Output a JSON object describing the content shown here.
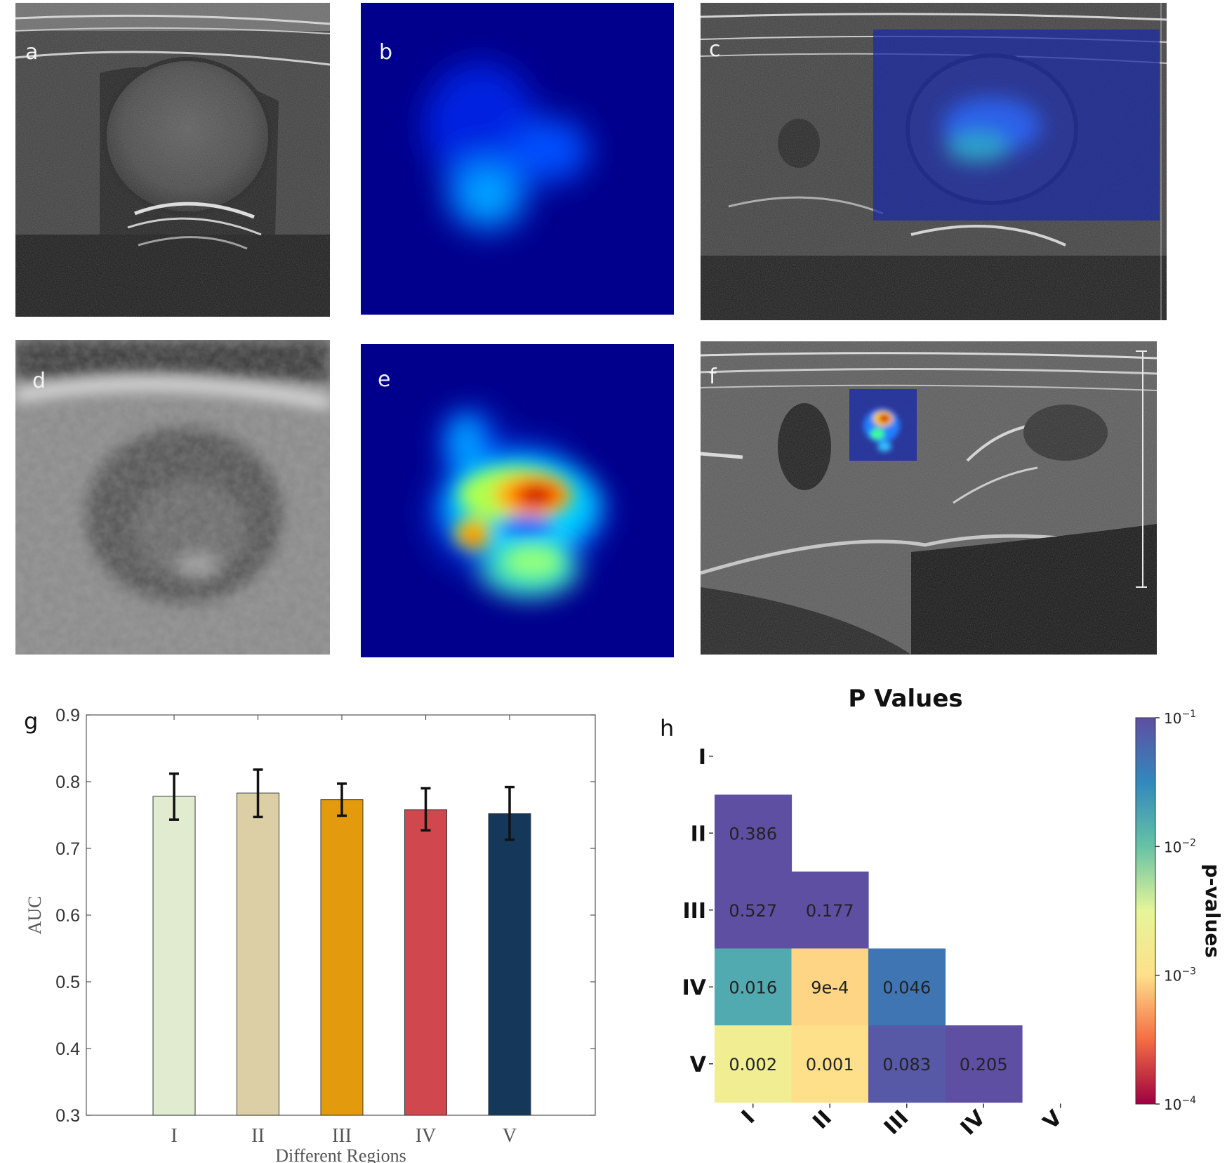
{
  "panels": {
    "a": {
      "label": "a"
    },
    "b": {
      "label": "b"
    },
    "c": {
      "label": "c"
    },
    "d": {
      "label": "d"
    },
    "e": {
      "label": "e"
    },
    "f": {
      "label": "f"
    }
  },
  "colors": {
    "bars": [
      "#e1ebd0",
      "#dccfa6",
      "#e39a0d",
      "#d0484d",
      "#14375a"
    ],
    "heatmap_background": "#00008c",
    "colormap": [
      "#9e0142",
      "#f46d43",
      "#fee08b",
      "#e6f598",
      "#66c2a5",
      "#3288bd",
      "#5e4fa2"
    ]
  },
  "chart_data": [
    {
      "panel_label": "g",
      "type": "bar",
      "categories": [
        "I",
        "II",
        "III",
        "IV",
        "V"
      ],
      "values": [
        0.778,
        0.783,
        0.773,
        0.758,
        0.752
      ],
      "error_bars": [
        {
          "low": 0.743,
          "high": 0.812
        },
        {
          "low": 0.747,
          "high": 0.818
        },
        {
          "low": 0.749,
          "high": 0.797
        },
        {
          "low": 0.727,
          "high": 0.79
        },
        {
          "low": 0.713,
          "high": 0.792
        }
      ],
      "xlabel": "Different Regions",
      "ylabel": "AUC",
      "ylim": [
        0.3,
        0.9
      ],
      "yticks": [
        "0.3",
        "0.4",
        "0.5",
        "0.6",
        "0.7",
        "0.8",
        "0.9"
      ],
      "grid": false
    },
    {
      "panel_label": "h",
      "type": "heatmap",
      "title": "P Values",
      "rows": [
        "I",
        "II",
        "III",
        "IV",
        "V"
      ],
      "columns": [
        "I",
        "II",
        "III",
        "IV",
        "V"
      ],
      "cells": [
        {
          "row": "II",
          "col": "I",
          "value": 0.386,
          "label": "0.386"
        },
        {
          "row": "III",
          "col": "I",
          "value": 0.527,
          "label": "0.527"
        },
        {
          "row": "III",
          "col": "II",
          "value": 0.177,
          "label": "0.177"
        },
        {
          "row": "IV",
          "col": "I",
          "value": 0.016,
          "label": "0.016"
        },
        {
          "row": "IV",
          "col": "II",
          "value": 0.0009,
          "label": "9e-4"
        },
        {
          "row": "IV",
          "col": "III",
          "value": 0.046,
          "label": "0.046"
        },
        {
          "row": "V",
          "col": "I",
          "value": 0.002,
          "label": "0.002"
        },
        {
          "row": "V",
          "col": "II",
          "value": 0.001,
          "label": "0.001"
        },
        {
          "row": "V",
          "col": "III",
          "value": 0.083,
          "label": "0.083"
        },
        {
          "row": "V",
          "col": "IV",
          "value": 0.205,
          "label": "0.205"
        }
      ],
      "colorbar": {
        "label": "p-values",
        "scale": "log",
        "range": [
          0.0001,
          0.1
        ],
        "tick_values": [
          0.1,
          0.01,
          0.001,
          0.0001
        ],
        "tick_labels": [
          {
            "base": "10",
            "exp": "−1"
          },
          {
            "base": "10",
            "exp": "−2"
          },
          {
            "base": "10",
            "exp": "−3"
          },
          {
            "base": "10",
            "exp": "−4"
          }
        ]
      }
    }
  ]
}
